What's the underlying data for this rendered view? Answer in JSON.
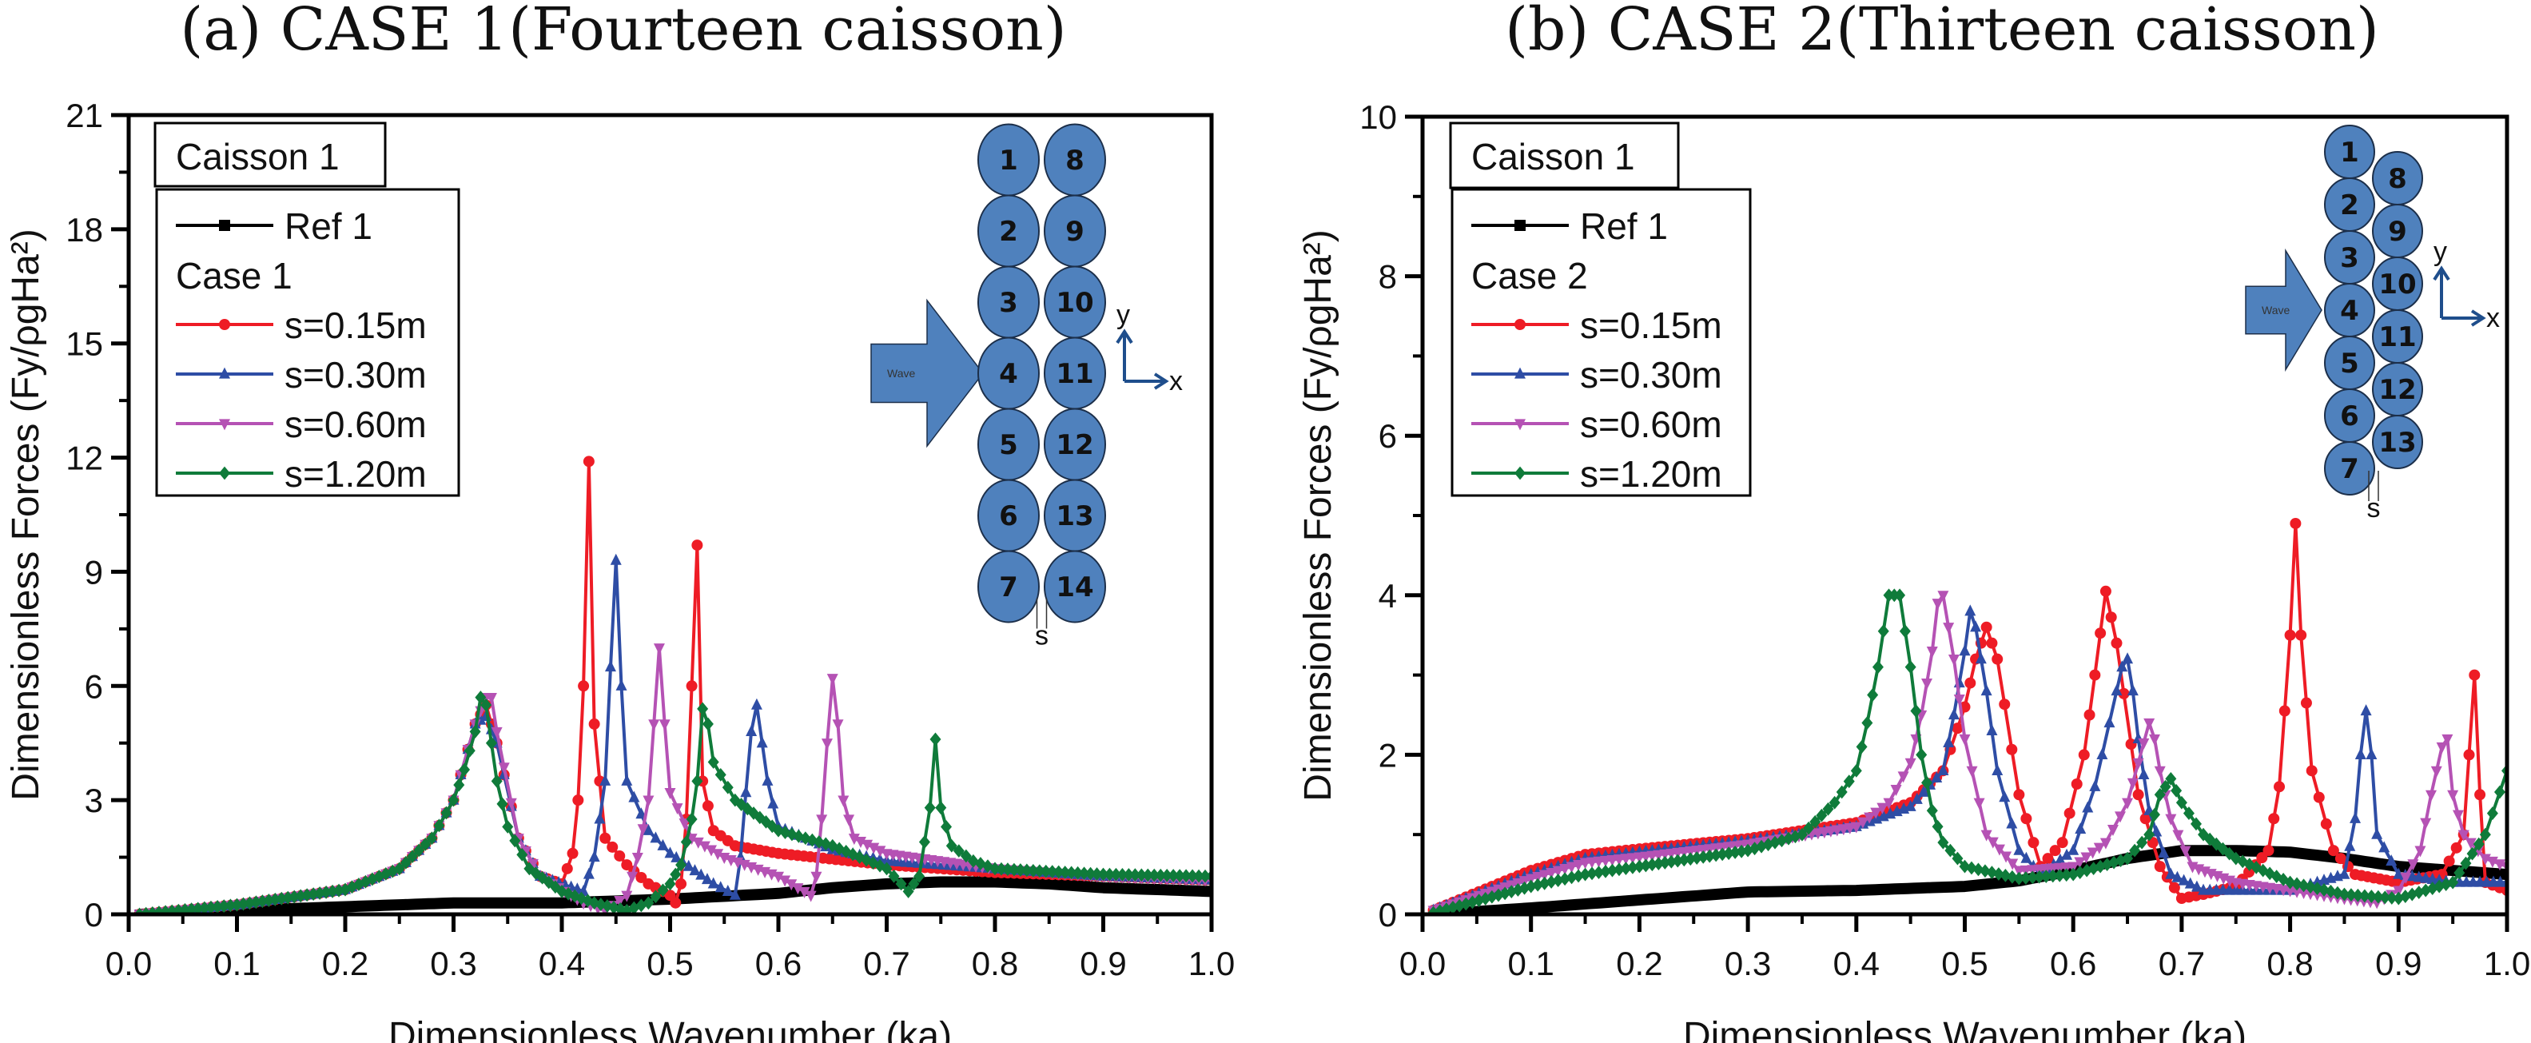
{
  "colors": {
    "ref": "#000000",
    "s015": "#ee1c25",
    "s030": "#2e4da5",
    "s060": "#b552b4",
    "s120": "#0f7b3a",
    "caisson_fill": "#4f81bd",
    "caisson_stroke": "#1c2f4a",
    "axis_arrow": "#1f4e8c"
  },
  "chart_data": [
    {
      "type": "line",
      "title": "(a) CASE 1(Fourteen caisson)",
      "xlabel": "Dimensionless Wavenumber (ka)",
      "ylabel": "Dimensionless Forces (Fy/ρgHa²)",
      "xlim": [
        0.0,
        1.0
      ],
      "ylim": [
        0,
        21
      ],
      "xticks": [
        "0.0",
        "0.1",
        "0.2",
        "0.3",
        "0.4",
        "0.5",
        "0.6",
        "0.7",
        "0.8",
        "0.9",
        "1.0"
      ],
      "yticks": [
        "0",
        "3",
        "6",
        "9",
        "12",
        "15",
        "18",
        "21"
      ],
      "legend_title": "Caisson 1",
      "legend_group": "Case 1",
      "legend_position": "top-left",
      "inset": {
        "wave_label": "Wave",
        "gap_label": "s",
        "axis_x": "x",
        "axis_y": "y",
        "column1": [
          "1",
          "2",
          "3",
          "4",
          "5",
          "6",
          "7"
        ],
        "column2": [
          "8",
          "9",
          "10",
          "11",
          "12",
          "13",
          "14"
        ]
      },
      "series": [
        {
          "name": "Ref 1",
          "key": "ref",
          "marker": "square",
          "x": [
            0.01,
            0.1,
            0.2,
            0.3,
            0.4,
            0.5,
            0.6,
            0.65,
            0.7,
            0.75,
            0.8,
            0.85,
            0.9,
            0.95,
            1.0
          ],
          "y": [
            0.0,
            0.1,
            0.2,
            0.3,
            0.3,
            0.4,
            0.55,
            0.7,
            0.8,
            0.85,
            0.85,
            0.8,
            0.7,
            0.65,
            0.6
          ]
        },
        {
          "name": "s=0.15m",
          "key": "s015",
          "marker": "circle",
          "x": [
            0.01,
            0.1,
            0.2,
            0.25,
            0.28,
            0.3,
            0.32,
            0.33,
            0.34,
            0.36,
            0.38,
            0.4,
            0.41,
            0.415,
            0.42,
            0.425,
            0.43,
            0.44,
            0.46,
            0.48,
            0.5,
            0.505,
            0.51,
            0.515,
            0.52,
            0.525,
            0.53,
            0.54,
            0.56,
            0.6,
            0.7,
            0.8,
            0.9,
            1.0
          ],
          "y": [
            0.0,
            0.25,
            0.65,
            1.2,
            2.0,
            3.0,
            5.0,
            5.5,
            4.5,
            2.0,
            1.0,
            0.8,
            1.6,
            3.0,
            6.0,
            11.9,
            5.0,
            2.0,
            1.3,
            0.8,
            0.5,
            0.3,
            0.8,
            2.5,
            6.0,
            9.7,
            3.5,
            2.2,
            1.8,
            1.6,
            1.3,
            1.1,
            1.0,
            0.9
          ]
        },
        {
          "name": "s=0.30m",
          "key": "s030",
          "marker": "triangle-up",
          "x": [
            0.01,
            0.1,
            0.2,
            0.25,
            0.28,
            0.3,
            0.32,
            0.33,
            0.34,
            0.36,
            0.38,
            0.42,
            0.43,
            0.44,
            0.445,
            0.45,
            0.455,
            0.46,
            0.48,
            0.5,
            0.54,
            0.56,
            0.565,
            0.57,
            0.575,
            0.58,
            0.59,
            0.6,
            0.65,
            0.7,
            0.8,
            0.9,
            1.0
          ],
          "y": [
            0.0,
            0.25,
            0.65,
            1.2,
            2.0,
            3.0,
            5.0,
            5.2,
            4.5,
            2.0,
            1.0,
            0.6,
            1.5,
            3.5,
            6.5,
            9.3,
            6.0,
            3.5,
            2.2,
            1.6,
            0.8,
            0.5,
            1.5,
            3.2,
            4.8,
            5.5,
            3.5,
            2.3,
            1.7,
            1.4,
            1.2,
            1.0,
            0.9
          ]
        },
        {
          "name": "s=0.60m",
          "key": "s060",
          "marker": "triangle-down",
          "x": [
            0.01,
            0.1,
            0.2,
            0.25,
            0.28,
            0.3,
            0.32,
            0.33,
            0.335,
            0.34,
            0.36,
            0.38,
            0.42,
            0.44,
            0.46,
            0.47,
            0.48,
            0.485,
            0.49,
            0.495,
            0.5,
            0.52,
            0.55,
            0.6,
            0.63,
            0.635,
            0.64,
            0.645,
            0.65,
            0.655,
            0.66,
            0.67,
            0.7,
            0.8,
            0.9,
            1.0
          ],
          "y": [
            0.0,
            0.25,
            0.65,
            1.2,
            2.0,
            3.0,
            5.0,
            5.7,
            5.7,
            4.8,
            2.0,
            1.0,
            0.3,
            0.1,
            0.5,
            1.5,
            3.0,
            5.0,
            7.0,
            5.0,
            3.2,
            2.0,
            1.5,
            1.0,
            0.5,
            1.0,
            2.5,
            4.5,
            6.2,
            5.0,
            3.0,
            2.0,
            1.6,
            1.2,
            1.0,
            0.9
          ]
        },
        {
          "name": "s=1.20m",
          "key": "s120",
          "marker": "diamond",
          "x": [
            0.01,
            0.1,
            0.2,
            0.25,
            0.28,
            0.3,
            0.31,
            0.32,
            0.325,
            0.33,
            0.34,
            0.35,
            0.37,
            0.4,
            0.43,
            0.46,
            0.48,
            0.5,
            0.51,
            0.52,
            0.525,
            0.53,
            0.535,
            0.54,
            0.56,
            0.6,
            0.65,
            0.7,
            0.72,
            0.73,
            0.74,
            0.745,
            0.75,
            0.76,
            0.78,
            0.8,
            0.9,
            1.0
          ],
          "y": [
            0.0,
            0.25,
            0.65,
            1.2,
            2.0,
            3.0,
            3.8,
            4.8,
            5.7,
            5.5,
            3.5,
            2.3,
            1.2,
            0.6,
            0.3,
            0.1,
            0.3,
            0.8,
            1.3,
            2.5,
            3.5,
            5.4,
            5.0,
            4.0,
            3.0,
            2.2,
            1.8,
            1.2,
            0.6,
            1.0,
            2.8,
            4.6,
            2.8,
            1.8,
            1.4,
            1.2,
            1.05,
            1.0
          ]
        }
      ]
    },
    {
      "type": "line",
      "title": "(b) CASE 2(Thirteen caisson)",
      "xlabel": "Dimensionless Wavenumber (ka)",
      "ylabel": "Dimensionless Forces (Fy/ρgHa²)",
      "xlim": [
        0.0,
        1.0
      ],
      "ylim": [
        0,
        10
      ],
      "xticks": [
        "0.0",
        "0.1",
        "0.2",
        "0.3",
        "0.4",
        "0.5",
        "0.6",
        "0.7",
        "0.8",
        "0.9",
        "1.0"
      ],
      "yticks": [
        "0",
        "2",
        "4",
        "6",
        "8",
        "10"
      ],
      "legend_title": "Caisson 1",
      "legend_group": "Case 2",
      "legend_position": "top-left",
      "inset": {
        "wave_label": "Wave",
        "gap_label": "s",
        "axis_x": "x",
        "axis_y": "y",
        "column1": [
          "1",
          "2",
          "3",
          "4",
          "5",
          "6",
          "7"
        ],
        "column2": [
          "8",
          "9",
          "10",
          "11",
          "12",
          "13"
        ]
      },
      "series": [
        {
          "name": "Ref 1",
          "key": "ref",
          "marker": "square",
          "x": [
            0.01,
            0.1,
            0.2,
            0.3,
            0.4,
            0.5,
            0.55,
            0.6,
            0.65,
            0.7,
            0.75,
            0.8,
            0.85,
            0.9,
            0.95,
            1.0
          ],
          "y": [
            0.0,
            0.08,
            0.18,
            0.28,
            0.3,
            0.35,
            0.42,
            0.55,
            0.7,
            0.8,
            0.8,
            0.78,
            0.7,
            0.6,
            0.55,
            0.5
          ]
        },
        {
          "name": "s=0.15m",
          "key": "s015",
          "marker": "circle",
          "x": [
            0.01,
            0.1,
            0.15,
            0.2,
            0.3,
            0.4,
            0.45,
            0.48,
            0.5,
            0.51,
            0.52,
            0.53,
            0.55,
            0.57,
            0.59,
            0.61,
            0.62,
            0.63,
            0.64,
            0.66,
            0.68,
            0.7,
            0.72,
            0.75,
            0.78,
            0.79,
            0.8,
            0.805,
            0.81,
            0.82,
            0.84,
            0.86,
            0.9,
            0.94,
            0.96,
            0.965,
            0.97,
            0.975,
            0.98,
            1.0
          ],
          "y": [
            0.05,
            0.55,
            0.75,
            0.82,
            0.95,
            1.15,
            1.4,
            1.8,
            2.6,
            3.2,
            3.6,
            3.2,
            1.5,
            0.6,
            0.9,
            2.0,
            3.0,
            4.05,
            3.4,
            1.5,
            0.6,
            0.2,
            0.25,
            0.35,
            0.8,
            1.6,
            3.5,
            4.9,
            3.5,
            1.8,
            0.8,
            0.5,
            0.4,
            0.5,
            1.0,
            2.0,
            3.0,
            1.5,
            0.4,
            0.3
          ]
        },
        {
          "name": "s=0.30m",
          "key": "s030",
          "marker": "triangle-up",
          "x": [
            0.01,
            0.1,
            0.15,
            0.2,
            0.3,
            0.4,
            0.45,
            0.48,
            0.49,
            0.5,
            0.505,
            0.51,
            0.52,
            0.53,
            0.55,
            0.57,
            0.6,
            0.62,
            0.64,
            0.645,
            0.65,
            0.655,
            0.66,
            0.67,
            0.69,
            0.72,
            0.75,
            0.8,
            0.85,
            0.86,
            0.865,
            0.87,
            0.875,
            0.88,
            0.9,
            0.95,
            1.0
          ],
          "y": [
            0.05,
            0.5,
            0.7,
            0.78,
            0.92,
            1.1,
            1.35,
            1.8,
            2.5,
            3.3,
            3.8,
            3.6,
            2.8,
            1.8,
            0.8,
            0.5,
            0.8,
            1.6,
            2.8,
            3.1,
            3.2,
            2.8,
            2.2,
            1.3,
            0.5,
            0.3,
            0.3,
            0.3,
            0.5,
            1.2,
            2.0,
            2.55,
            2.0,
            1.0,
            0.5,
            0.4,
            0.4
          ]
        },
        {
          "name": "s=0.60m",
          "key": "s060",
          "marker": "triangle-down",
          "x": [
            0.01,
            0.1,
            0.15,
            0.2,
            0.3,
            0.4,
            0.43,
            0.45,
            0.46,
            0.47,
            0.475,
            0.48,
            0.49,
            0.5,
            0.52,
            0.55,
            0.6,
            0.63,
            0.65,
            0.66,
            0.67,
            0.675,
            0.68,
            0.69,
            0.71,
            0.75,
            0.8,
            0.85,
            0.88,
            0.9,
            0.92,
            0.93,
            0.94,
            0.945,
            0.95,
            0.96,
            0.98,
            1.0
          ],
          "y": [
            0.05,
            0.45,
            0.65,
            0.72,
            0.88,
            1.1,
            1.4,
            1.9,
            2.5,
            3.3,
            3.9,
            4.0,
            3.2,
            2.2,
            1.0,
            0.55,
            0.6,
            0.9,
            1.4,
            1.9,
            2.4,
            2.2,
            1.8,
            1.2,
            0.6,
            0.4,
            0.3,
            0.2,
            0.15,
            0.3,
            0.8,
            1.5,
            2.1,
            2.2,
            1.5,
            1.0,
            0.7,
            0.6
          ]
        },
        {
          "name": "s=1.20m",
          "key": "s120",
          "marker": "diamond",
          "x": [
            0.01,
            0.1,
            0.15,
            0.2,
            0.3,
            0.35,
            0.38,
            0.4,
            0.41,
            0.42,
            0.43,
            0.44,
            0.45,
            0.46,
            0.47,
            0.48,
            0.5,
            0.55,
            0.6,
            0.65,
            0.67,
            0.68,
            0.69,
            0.7,
            0.72,
            0.75,
            0.8,
            0.85,
            0.9,
            0.95,
            0.98,
            1.0
          ],
          "y": [
            0.02,
            0.35,
            0.5,
            0.6,
            0.8,
            1.0,
            1.4,
            1.8,
            2.4,
            3.1,
            4.0,
            4.0,
            3.1,
            2.0,
            1.3,
            0.9,
            0.6,
            0.45,
            0.5,
            0.7,
            1.0,
            1.5,
            1.7,
            1.4,
            1.0,
            0.7,
            0.4,
            0.25,
            0.2,
            0.4,
            1.0,
            1.8
          ]
        }
      ]
    }
  ]
}
